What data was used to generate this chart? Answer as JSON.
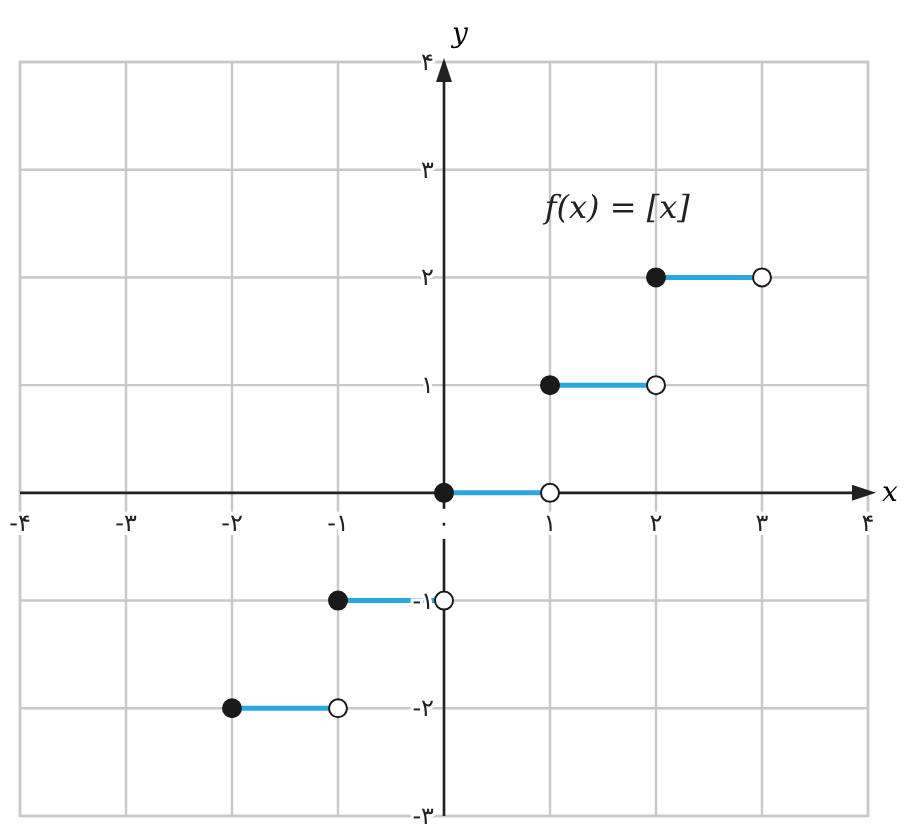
{
  "chart_data": {
    "type": "line",
    "xlabel": "x",
    "ylabel": "y",
    "xlim": [
      -4,
      4
    ],
    "ylim": [
      -3,
      4
    ],
    "xticks": [
      {
        "value": -4,
        "label": "-۴"
      },
      {
        "value": -3,
        "label": "-۳"
      },
      {
        "value": -2,
        "label": "-۲"
      },
      {
        "value": -1,
        "label": "-۱"
      },
      {
        "value": 0,
        "label": "۰"
      },
      {
        "value": 1,
        "label": "۱"
      },
      {
        "value": 2,
        "label": "۲"
      },
      {
        "value": 3,
        "label": "۳"
      },
      {
        "value": 4,
        "label": "۴"
      }
    ],
    "yticks": [
      {
        "value": -3,
        "label": "-۳"
      },
      {
        "value": -2,
        "label": "-۲"
      },
      {
        "value": -1,
        "label": "-۱"
      },
      {
        "value": 0,
        "label": null
      },
      {
        "value": 1,
        "label": "۱"
      },
      {
        "value": 2,
        "label": "۲"
      },
      {
        "value": 3,
        "label": "۳"
      },
      {
        "value": 4,
        "label": "۴"
      }
    ],
    "grid": true,
    "annotations": [
      "f(x) = [x]"
    ],
    "series": [
      {
        "color": "#29a8e0",
        "x": [
          -2,
          -1
        ],
        "values": [
          -2,
          -2
        ]
      },
      {
        "color": "#29a8e0",
        "x": [
          -1,
          0
        ],
        "values": [
          -1,
          -1
        ]
      },
      {
        "color": "#29a8e0",
        "x": [
          0,
          1
        ],
        "values": [
          0,
          0
        ]
      },
      {
        "color": "#29a8e0",
        "x": [
          1,
          2
        ],
        "values": [
          1,
          1
        ]
      },
      {
        "color": "#29a8e0",
        "x": [
          2,
          3
        ],
        "values": [
          2,
          2
        ]
      },
      {
        "type": "scatter",
        "marker": "circle",
        "color": "#1a1a1a",
        "x": [
          -2,
          -1,
          0,
          1,
          2
        ],
        "values": [
          -2,
          -1,
          0,
          1,
          2
        ]
      },
      {
        "type": "scatter",
        "marker": "circle",
        "color": "#ffffff",
        "x": [
          -1,
          0,
          1,
          2,
          3
        ],
        "values": [
          -2,
          -1,
          0,
          1,
          2
        ]
      }
    ]
  }
}
